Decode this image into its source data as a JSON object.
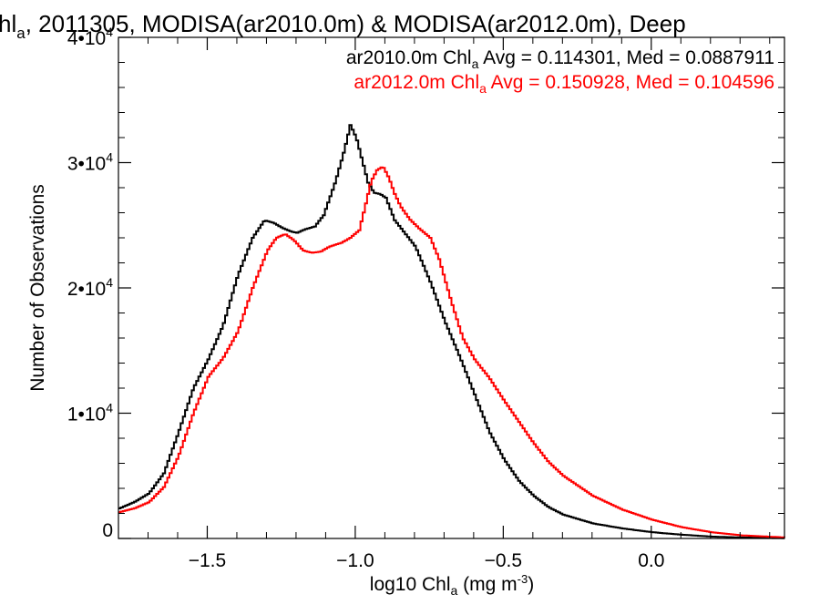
{
  "chart_data": {
    "type": "line",
    "title": {
      "lead": "hl",
      "lead_sub": "a",
      "rest": ", 2011305, MODISA(ar2010.0m) & MODISA(ar2012.0m), Deep"
    },
    "xlabel": {
      "pre": "log10 Chl",
      "sub": "a",
      "mid": " (mg m",
      "sup": "-3",
      "post": ")"
    },
    "ylabel": "Number of Observations",
    "xlim": [
      -1.8,
      0.45
    ],
    "ylim": [
      0,
      40000
    ],
    "x_ticks": [
      {
        "value": -1.5,
        "label": "−1.5"
      },
      {
        "value": -1.0,
        "label": "−1.0"
      },
      {
        "value": -0.5,
        "label": "−0.5"
      },
      {
        "value": 0.0,
        "label": "0.0"
      }
    ],
    "y_ticks": [
      {
        "value": 0,
        "base": "0",
        "exp": ""
      },
      {
        "value": 10000,
        "base": "1•10",
        "exp": "4"
      },
      {
        "value": 20000,
        "base": "2•10",
        "exp": "4"
      },
      {
        "value": 30000,
        "base": "3•10",
        "exp": "4"
      },
      {
        "value": 40000,
        "base": "4•10",
        "exp": "4"
      }
    ],
    "grid": false,
    "legend_position": "top-right",
    "series": [
      {
        "color": "#000000",
        "legend": {
          "pre": "ar2010.0m Chl",
          "sub": "a",
          "post": " Avg = 0.114301, Med = 0.0887911"
        },
        "points": [
          [
            -1.8,
            2400
          ],
          [
            -1.75,
            2900
          ],
          [
            -1.7,
            3600
          ],
          [
            -1.65,
            5200
          ],
          [
            -1.6,
            8500
          ],
          [
            -1.55,
            12000
          ],
          [
            -1.5,
            14300
          ],
          [
            -1.45,
            17000
          ],
          [
            -1.4,
            21000
          ],
          [
            -1.35,
            24000
          ],
          [
            -1.31,
            25400
          ],
          [
            -1.28,
            25200
          ],
          [
            -1.25,
            24800
          ],
          [
            -1.22,
            24500
          ],
          [
            -1.2,
            24400
          ],
          [
            -1.17,
            24700
          ],
          [
            -1.14,
            24900
          ],
          [
            -1.11,
            25800
          ],
          [
            -1.07,
            28500
          ],
          [
            -1.04,
            31000
          ],
          [
            -1.02,
            33000
          ],
          [
            -1.0,
            32000
          ],
          [
            -0.98,
            30200
          ],
          [
            -0.96,
            28400
          ],
          [
            -0.94,
            27600
          ],
          [
            -0.92,
            27500
          ],
          [
            -0.9,
            27200
          ],
          [
            -0.87,
            25400
          ],
          [
            -0.84,
            24500
          ],
          [
            -0.8,
            23300
          ],
          [
            -0.75,
            20500
          ],
          [
            -0.7,
            17300
          ],
          [
            -0.65,
            14500
          ],
          [
            -0.6,
            11500
          ],
          [
            -0.55,
            8500
          ],
          [
            -0.5,
            6300
          ],
          [
            -0.45,
            4600
          ],
          [
            -0.4,
            3400
          ],
          [
            -0.35,
            2500
          ],
          [
            -0.3,
            1900
          ],
          [
            -0.2,
            1200
          ],
          [
            -0.1,
            800
          ],
          [
            0.0,
            500
          ],
          [
            0.1,
            300
          ],
          [
            0.2,
            150
          ],
          [
            0.3,
            80
          ],
          [
            0.45,
            30
          ]
        ]
      },
      {
        "color": "#ff0000",
        "legend": {
          "pre": "ar2012.0m Chl",
          "sub": "a",
          "post": " Avg = 0.150928, Med = 0.104596"
        },
        "points": [
          [
            -1.8,
            2100
          ],
          [
            -1.75,
            2400
          ],
          [
            -1.7,
            2900
          ],
          [
            -1.65,
            4100
          ],
          [
            -1.6,
            6600
          ],
          [
            -1.55,
            10000
          ],
          [
            -1.5,
            12900
          ],
          [
            -1.45,
            14400
          ],
          [
            -1.4,
            16500
          ],
          [
            -1.35,
            20000
          ],
          [
            -1.3,
            23000
          ],
          [
            -1.27,
            24000
          ],
          [
            -1.24,
            24300
          ],
          [
            -1.21,
            23800
          ],
          [
            -1.18,
            23000
          ],
          [
            -1.15,
            22800
          ],
          [
            -1.12,
            22900
          ],
          [
            -1.09,
            23300
          ],
          [
            -1.05,
            23600
          ],
          [
            -1.02,
            24000
          ],
          [
            -0.99,
            24600
          ],
          [
            -0.97,
            26500
          ],
          [
            -0.95,
            28500
          ],
          [
            -0.93,
            29400
          ],
          [
            -0.91,
            29700
          ],
          [
            -0.89,
            28800
          ],
          [
            -0.87,
            27500
          ],
          [
            -0.85,
            26500
          ],
          [
            -0.82,
            25500
          ],
          [
            -0.79,
            24800
          ],
          [
            -0.75,
            24000
          ],
          [
            -0.72,
            22300
          ],
          [
            -0.68,
            19000
          ],
          [
            -0.64,
            16000
          ],
          [
            -0.6,
            14300
          ],
          [
            -0.55,
            12800
          ],
          [
            -0.5,
            11000
          ],
          [
            -0.45,
            9300
          ],
          [
            -0.4,
            7600
          ],
          [
            -0.35,
            6100
          ],
          [
            -0.3,
            5000
          ],
          [
            -0.2,
            3400
          ],
          [
            -0.1,
            2300
          ],
          [
            0.0,
            1500
          ],
          [
            0.1,
            900
          ],
          [
            0.2,
            500
          ],
          [
            0.3,
            250
          ],
          [
            0.45,
            80
          ]
        ]
      }
    ]
  }
}
